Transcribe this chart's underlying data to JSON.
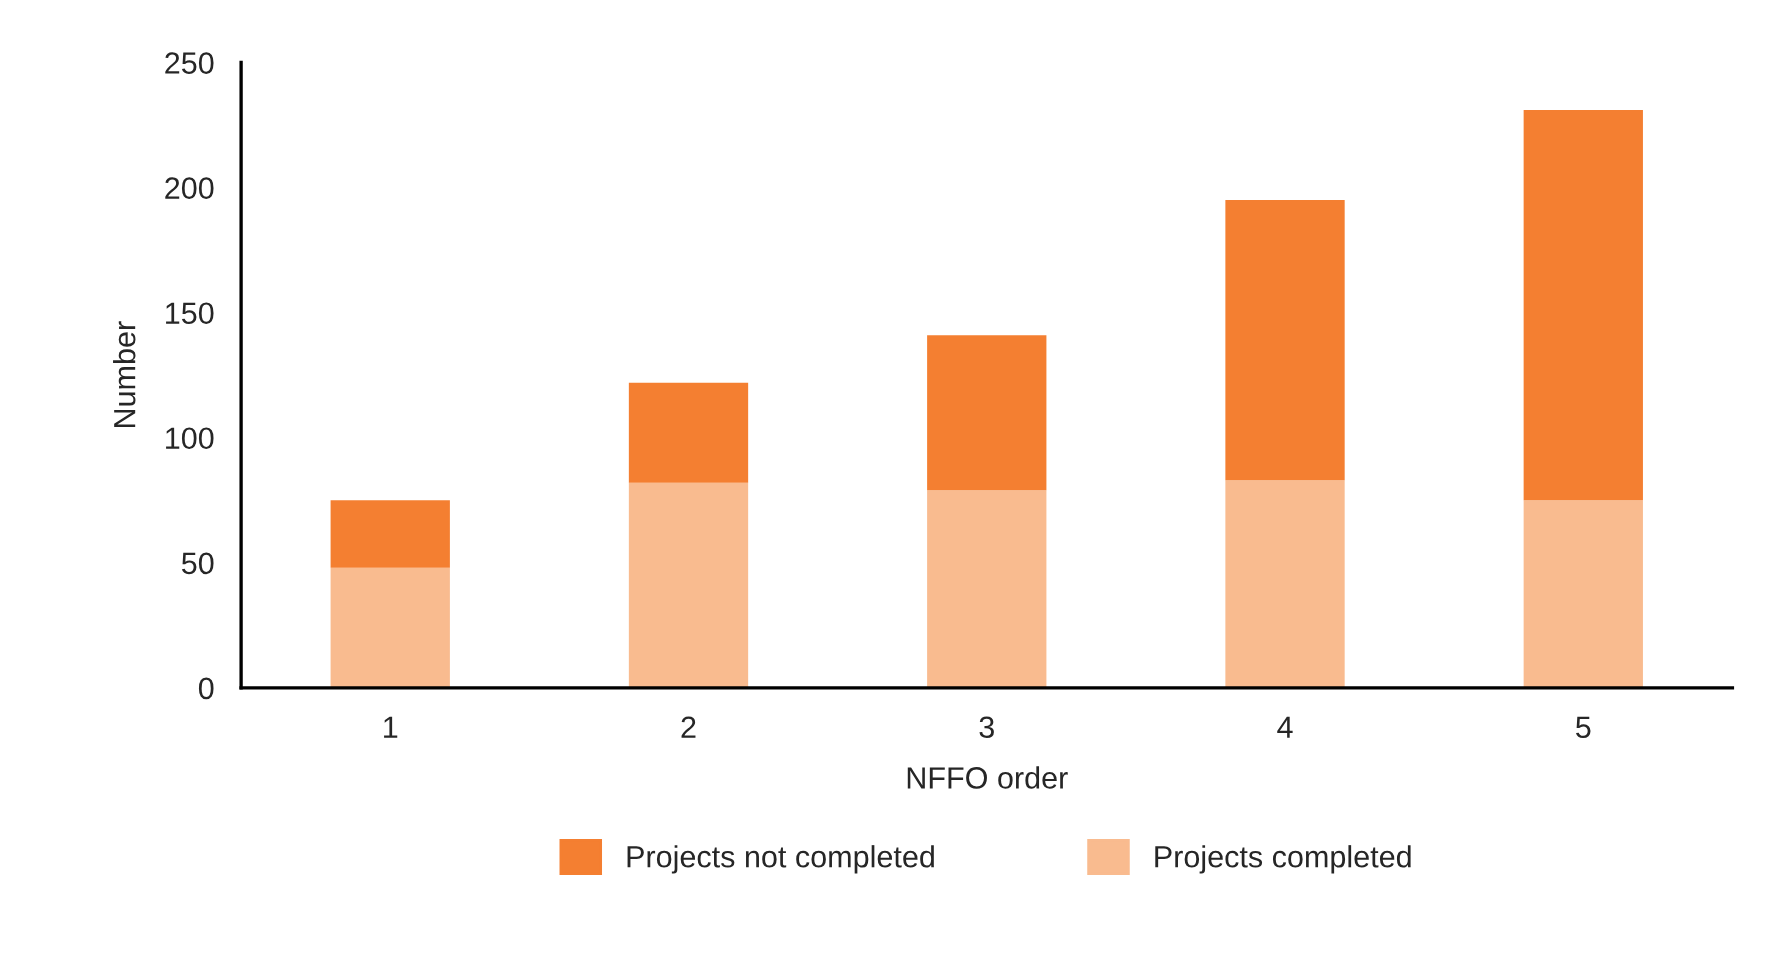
{
  "chart_data": {
    "type": "bar",
    "stacked": true,
    "xlabel": "NFFO order",
    "ylabel": "Number",
    "categories": [
      "1",
      "2",
      "3",
      "4",
      "5"
    ],
    "series": [
      {
        "name": "Projects completed",
        "color": "#f9bb8f",
        "values": [
          48,
          82,
          79,
          83,
          75
        ]
      },
      {
        "name": "Projects not completed",
        "color": "#f47f31",
        "values": [
          27,
          40,
          62,
          112,
          156
        ]
      }
    ],
    "ylim": [
      0,
      250
    ],
    "yticks": [
      0,
      50,
      100,
      150,
      200,
      250
    ],
    "grid": false,
    "legend": "bottom"
  }
}
